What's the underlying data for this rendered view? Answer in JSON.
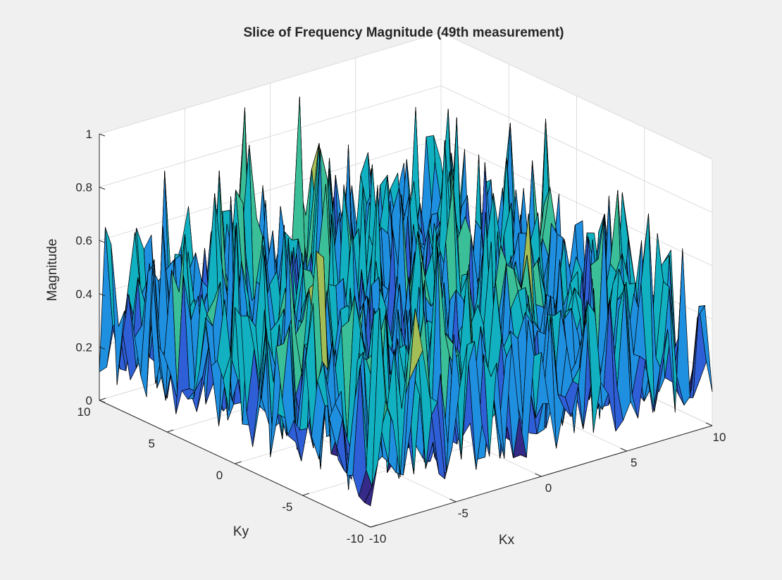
{
  "chart_data": {
    "type": "surface",
    "title": "Slice of Frequency Magnitude (49th measurement)",
    "xlabel": "Kx",
    "ylabel": "Ky",
    "zlabel": "Magnitude",
    "xlim": [
      -10,
      10
    ],
    "ylim": [
      -10,
      10
    ],
    "zlim": [
      0,
      1
    ],
    "x_ticks": [
      -10,
      -5,
      0,
      5,
      10
    ],
    "y_ticks": [
      -10,
      -5,
      0,
      5,
      10
    ],
    "z_ticks": [
      0,
      0.2,
      0.4,
      0.6,
      0.8,
      1
    ],
    "x_tick_labels": [
      "-10",
      "-5",
      "0",
      "5",
      "10"
    ],
    "y_tick_labels": [
      "-10",
      "-5",
      "0",
      "5",
      "10"
    ],
    "z_tick_labels": [
      "0",
      "0.2",
      "0.4",
      "0.6",
      "0.8",
      "1"
    ],
    "grid": true,
    "colormap": "parula",
    "colormap_colors": [
      "#352a87",
      "#2f5fd6",
      "#1f8fe0",
      "#11b1c2",
      "#3bbf98",
      "#a4be57",
      "#f1b837",
      "#f9fb0e"
    ],
    "value_range_approx": [
      0.05,
      1.0
    ],
    "typical_magnitude_approx": 0.35,
    "peaks_approx": [
      {
        "kx": 0,
        "ky": 8,
        "magnitude": 1.0
      },
      {
        "kx": -2,
        "ky": 9,
        "magnitude": 0.97
      },
      {
        "kx": 6,
        "ky": 4,
        "magnitude": 0.9
      },
      {
        "kx": -6,
        "ky": 6,
        "magnitude": 0.88
      }
    ],
    "background_color": "#f0f0f0",
    "axes_color": "#ffffff",
    "edge_color": "#000000"
  }
}
